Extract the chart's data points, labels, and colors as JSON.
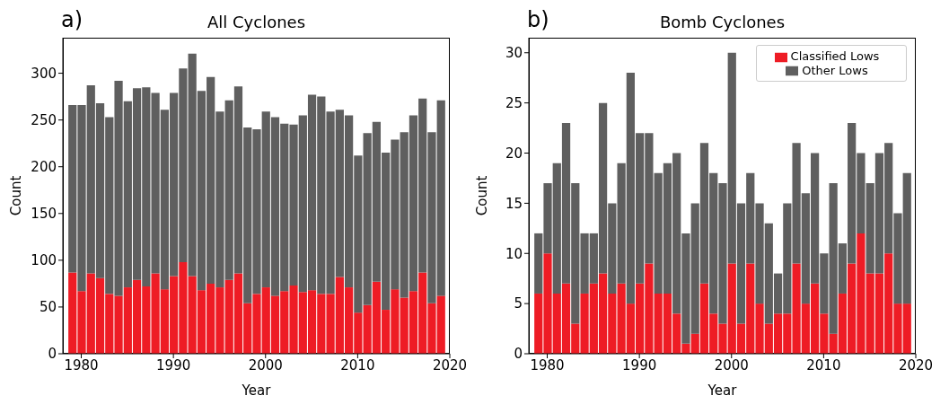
{
  "chart_data": [
    {
      "type": "bar",
      "title": "All Cyclones",
      "annotations": [
        "a)"
      ],
      "xlabel": "Year",
      "ylabel": "Count",
      "stacked": true,
      "legend": false,
      "grid": false,
      "x": [
        1979,
        1980,
        1981,
        1982,
        1983,
        1984,
        1985,
        1986,
        1987,
        1988,
        1989,
        1990,
        1991,
        1992,
        1993,
        1994,
        1995,
        1996,
        1997,
        1998,
        1999,
        2000,
        2001,
        2002,
        2003,
        2004,
        2005,
        2006,
        2007,
        2008,
        2009,
        2010,
        2011,
        2012,
        2013,
        2014,
        2015,
        2016,
        2017,
        2018,
        2019
      ],
      "xlim": [
        1978,
        2020
      ],
      "xticks": [
        1980,
        1990,
        2000,
        2010,
        2020
      ],
      "ylim": [
        0,
        338
      ],
      "yticks": [
        0,
        50,
        100,
        150,
        200,
        250,
        300
      ],
      "series": [
        {
          "color": "#ee1c25",
          "values": [
            87,
            67,
            86,
            81,
            64,
            62,
            71,
            79,
            72,
            86,
            69,
            83,
            98,
            83,
            68,
            75,
            71,
            79,
            86,
            54,
            64,
            71,
            62,
            67,
            73,
            66,
            68,
            64,
            64,
            82,
            71,
            44,
            52,
            77,
            47,
            69,
            60,
            67,
            87,
            54,
            62
          ]
        },
        {
          "color": "#5f5f5f",
          "values": [
            179,
            199,
            201,
            187,
            189,
            230,
            199,
            205,
            213,
            193,
            192,
            196,
            207,
            238,
            213,
            221,
            188,
            192,
            200,
            188,
            176,
            188,
            191,
            179,
            172,
            189,
            209,
            211,
            195,
            179,
            184,
            168,
            184,
            171,
            168,
            160,
            177,
            188,
            186,
            183,
            209
          ]
        }
      ]
    },
    {
      "type": "bar",
      "title": "Bomb Cyclones",
      "annotations": [
        "b)"
      ],
      "xlabel": "Year",
      "ylabel": "Count",
      "stacked": true,
      "legend": "top right",
      "grid": false,
      "x": [
        1979,
        1980,
        1981,
        1982,
        1983,
        1984,
        1985,
        1986,
        1987,
        1988,
        1989,
        1990,
        1991,
        1992,
        1993,
        1994,
        1995,
        1996,
        1997,
        1998,
        1999,
        2000,
        2001,
        2002,
        2003,
        2004,
        2005,
        2006,
        2007,
        2008,
        2009,
        2010,
        2011,
        2012,
        2013,
        2014,
        2015,
        2016,
        2017,
        2018,
        2019
      ],
      "xlim": [
        1978,
        2020
      ],
      "xticks": [
        1980,
        1990,
        2000,
        2010,
        2020
      ],
      "ylim": [
        0,
        31.5
      ],
      "yticks": [
        0,
        5,
        10,
        15,
        20,
        25,
        30
      ],
      "series": [
        {
          "name": "Classified Lows",
          "color": "#ee1c25",
          "values": [
            6,
            10,
            6,
            7,
            3,
            6,
            7,
            8,
            6,
            7,
            5,
            7,
            9,
            6,
            6,
            4,
            1,
            2,
            7,
            4,
            3,
            9,
            3,
            9,
            5,
            3,
            4,
            4,
            9,
            5,
            7,
            4,
            2,
            6,
            9,
            12,
            8,
            8,
            10,
            5,
            5
          ]
        },
        {
          "name": "Other Lows",
          "color": "#5f5f5f",
          "values": [
            6,
            7,
            13,
            16,
            14,
            6,
            5,
            17,
            9,
            12,
            23,
            15,
            13,
            12,
            13,
            16,
            11,
            13,
            14,
            14,
            14,
            21,
            12,
            9,
            10,
            10,
            4,
            11,
            12,
            11,
            13,
            6,
            15,
            5,
            14,
            8,
            9,
            12,
            11,
            9,
            13
          ]
        }
      ]
    }
  ]
}
